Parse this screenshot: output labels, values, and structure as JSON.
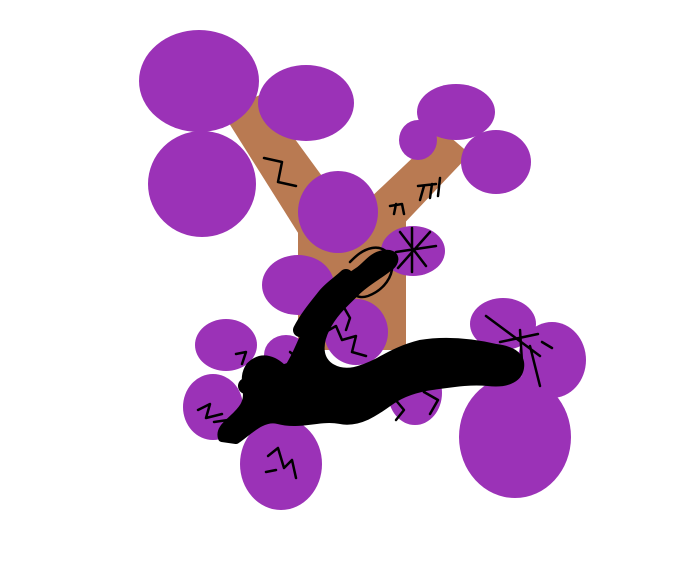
{
  "colors": {
    "background": "#ffffff",
    "bark": "#b97a52",
    "blossom": "#9b32b7",
    "ink": "#000000"
  }
}
